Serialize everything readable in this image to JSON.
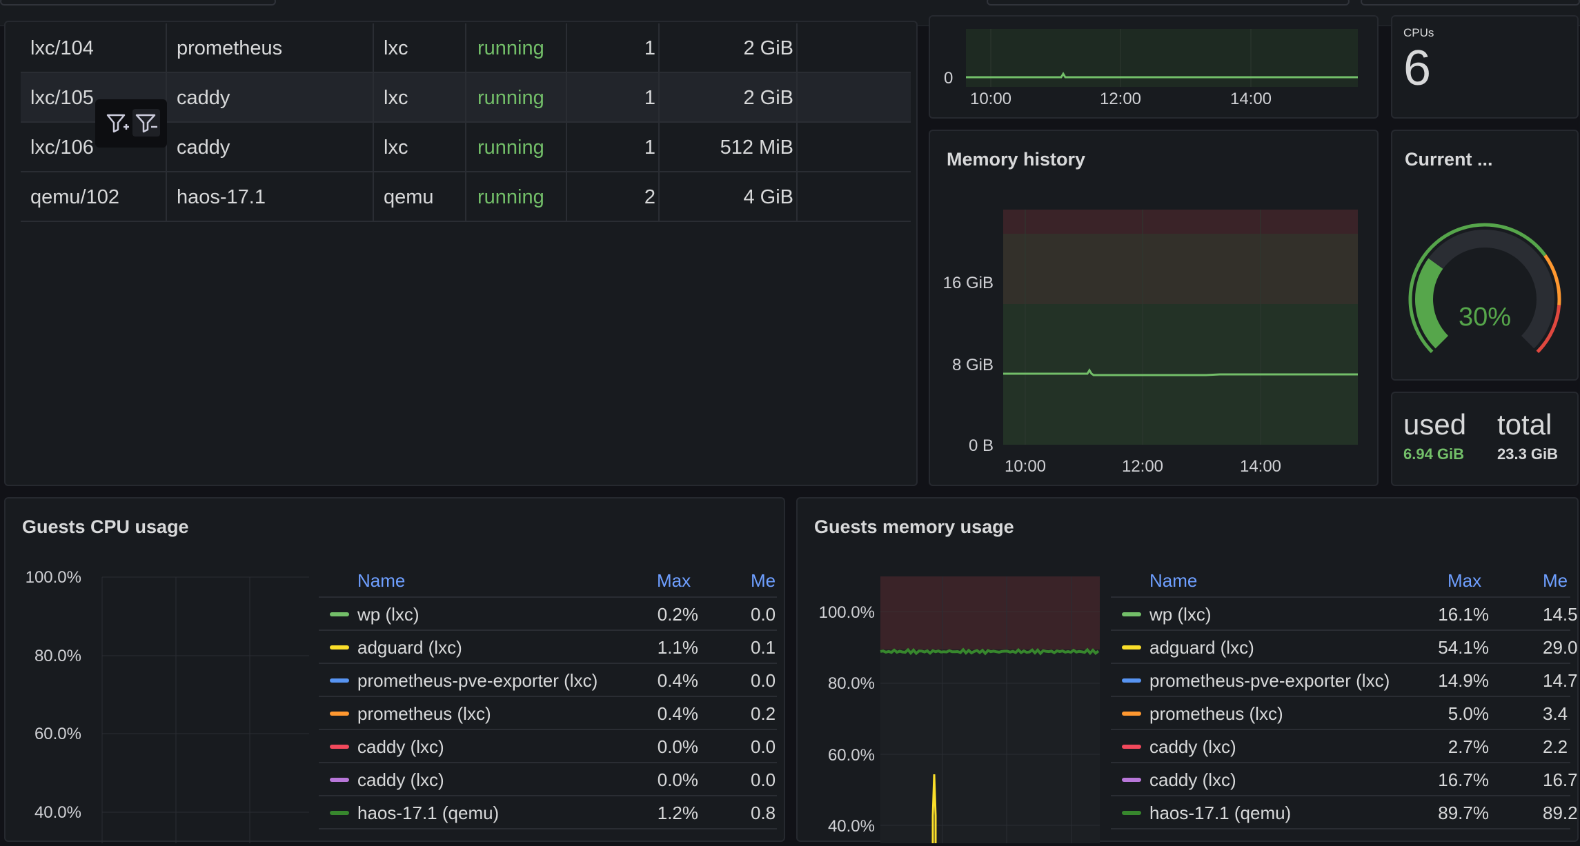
{
  "guests_table": {
    "rows": [
      {
        "id": "lxc/104",
        "name": "prometheus",
        "type": "lxc",
        "status": "running",
        "cpus": "1",
        "mem": "2 GiB"
      },
      {
        "id": "lxc/105",
        "name": "caddy",
        "type": "lxc",
        "status": "running",
        "cpus": "1",
        "mem": "2 GiB"
      },
      {
        "id": "lxc/106",
        "name": "caddy",
        "type": "lxc",
        "status": "running",
        "cpus": "1",
        "mem": "512 MiB"
      },
      {
        "id": "qemu/102",
        "name": "haos-17.1",
        "type": "qemu",
        "status": "running",
        "cpus": "2",
        "mem": "4 GiB"
      }
    ],
    "filter_icons": [
      "filter-for-value-icon",
      "filter-out-value-icon"
    ]
  },
  "cpu_history_top": {
    "y_tick": "0",
    "x_ticks": [
      "10:00",
      "12:00",
      "14:00"
    ]
  },
  "cpus_stat": {
    "label": "CPUs",
    "value": "6"
  },
  "memory_history": {
    "title": "Memory history",
    "y_ticks": [
      "16 GiB",
      "8 GiB",
      "0 B"
    ],
    "x_ticks": [
      "10:00",
      "12:00",
      "14:00"
    ]
  },
  "current_gauge": {
    "title": "Current ...",
    "value_text": "30%",
    "value": 30
  },
  "mem_stat": {
    "used_label": "used",
    "used_value": "6.94 GiB",
    "total_label": "total",
    "total_value": "23.3 GiB"
  },
  "guests_cpu": {
    "title": "Guests CPU usage",
    "y_ticks": [
      "100.0%",
      "80.0%",
      "60.0%",
      "40.0%"
    ],
    "legend_headers": {
      "name": "Name",
      "max": "Max",
      "mean": "Me"
    },
    "legend": [
      {
        "name": "wp (lxc)",
        "max": "0.2%",
        "mean": "0.0",
        "color": "#73bf69"
      },
      {
        "name": "adguard (lxc)",
        "max": "1.1%",
        "mean": "0.1",
        "color": "#fade2a"
      },
      {
        "name": "prometheus-pve-exporter (lxc)",
        "max": "0.4%",
        "mean": "0.0",
        "color": "#5794f2"
      },
      {
        "name": "prometheus (lxc)",
        "max": "0.4%",
        "mean": "0.2",
        "color": "#ff9830"
      },
      {
        "name": "caddy (lxc)",
        "max": "0.0%",
        "mean": "0.0",
        "color": "#f2495c"
      },
      {
        "name": "caddy (lxc)",
        "max": "0.0%",
        "mean": "0.0",
        "color": "#b877d9"
      },
      {
        "name": "haos-17.1 (qemu)",
        "max": "1.2%",
        "mean": "0.8",
        "color": "#37872d"
      }
    ]
  },
  "guests_memory": {
    "title": "Guests memory usage",
    "y_ticks": [
      "100.0%",
      "80.0%",
      "60.0%",
      "40.0%"
    ],
    "legend_headers": {
      "name": "Name",
      "max": "Max",
      "mean": "Me"
    },
    "legend": [
      {
        "name": "wp (lxc)",
        "max": "16.1%",
        "mean": "14.5",
        "color": "#73bf69"
      },
      {
        "name": "adguard (lxc)",
        "max": "54.1%",
        "mean": "29.0",
        "color": "#fade2a"
      },
      {
        "name": "prometheus-pve-exporter (lxc)",
        "max": "14.9%",
        "mean": "14.7",
        "color": "#5794f2"
      },
      {
        "name": "prometheus (lxc)",
        "max": "5.0%",
        "mean": "3.4",
        "color": "#ff9830"
      },
      {
        "name": "caddy (lxc)",
        "max": "2.7%",
        "mean": "2.2",
        "color": "#f2495c"
      },
      {
        "name": "caddy (lxc)",
        "max": "16.7%",
        "mean": "16.7",
        "color": "#b877d9"
      },
      {
        "name": "haos-17.1 (qemu)",
        "max": "89.7%",
        "mean": "89.2",
        "color": "#37872d"
      }
    ]
  }
}
